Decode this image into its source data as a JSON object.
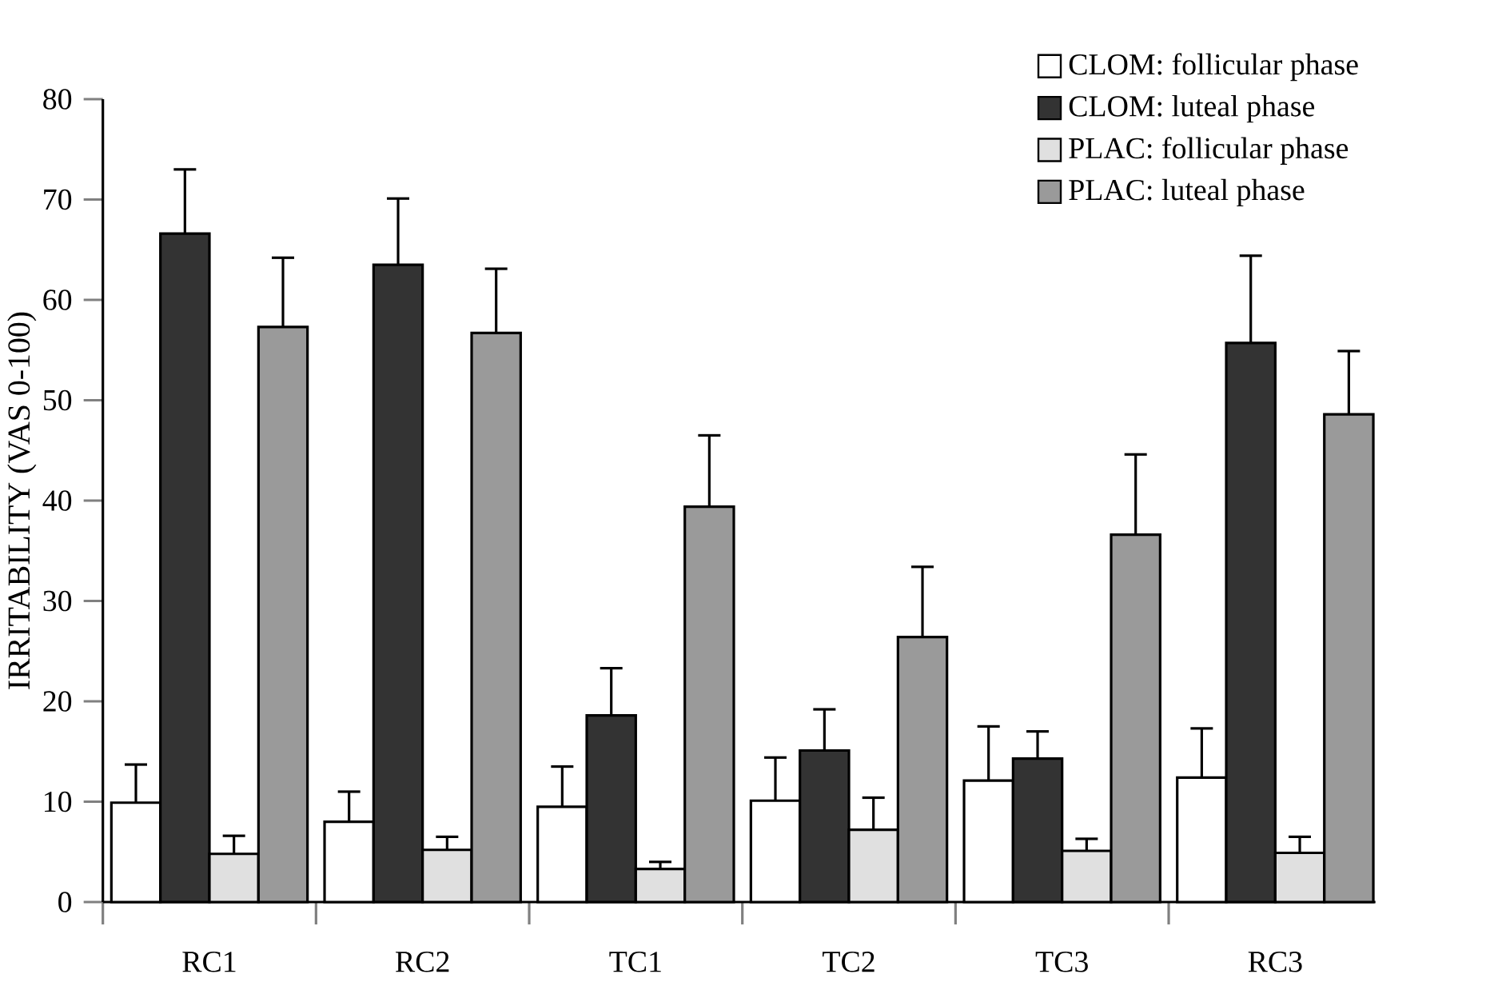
{
  "chart_data": {
    "type": "bar",
    "ylabel": "IRRITABILITY (VAS 0-100)",
    "categories": [
      "RC1",
      "RC2",
      "TC1",
      "TC2",
      "TC3",
      "RC3"
    ],
    "series": [
      {
        "name": "CLOM: follicular phase",
        "color": "#ffffff",
        "values": [
          9.9,
          8.0,
          9.5,
          10.1,
          12.1,
          12.4
        ],
        "errors": [
          [
            9.9,
            13.7
          ],
          [
            8.0,
            11.0
          ],
          [
            9.5,
            13.5
          ],
          [
            10.1,
            14.4
          ],
          [
            12.1,
            17.5
          ],
          [
            12.4,
            17.3
          ]
        ]
      },
      {
        "name": "CLOM: luteal phase",
        "color": "#333333",
        "values": [
          66.6,
          63.5,
          18.6,
          15.1,
          14.3,
          55.7
        ],
        "errors": [
          [
            66.6,
            73.0
          ],
          [
            63.5,
            70.1
          ],
          [
            18.6,
            23.3
          ],
          [
            15.1,
            19.2
          ],
          [
            14.3,
            17.0
          ],
          [
            55.7,
            64.4
          ]
        ]
      },
      {
        "name": "PLAC: follicular phase",
        "color": "#e0e0e0",
        "values": [
          4.8,
          5.2,
          3.3,
          7.2,
          5.1,
          4.9
        ],
        "errors": [
          [
            4.8,
            6.6
          ],
          [
            5.2,
            6.5
          ],
          [
            3.3,
            4.0
          ],
          [
            7.2,
            10.4
          ],
          [
            5.1,
            6.3
          ],
          [
            4.9,
            6.5
          ]
        ]
      },
      {
        "name": "PLAC: luteal phase",
        "color": "#9a9a9a",
        "values": [
          57.3,
          56.7,
          39.4,
          26.4,
          36.6,
          48.6
        ],
        "errors": [
          [
            57.3,
            64.2
          ],
          [
            56.7,
            63.1
          ],
          [
            39.4,
            46.5
          ],
          [
            26.4,
            33.4
          ],
          [
            36.6,
            44.6
          ],
          [
            48.6,
            54.9
          ]
        ]
      }
    ],
    "ylim": [
      0,
      80
    ],
    "yticks": [
      0,
      10,
      20,
      30,
      40,
      50,
      60,
      70,
      80
    ],
    "legend": "top right",
    "grid": false
  }
}
